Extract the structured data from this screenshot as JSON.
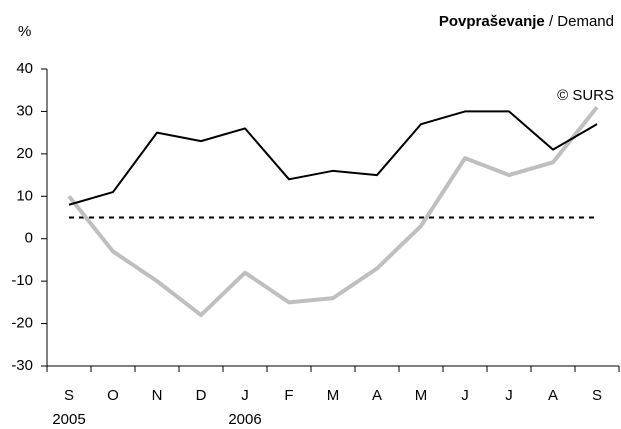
{
  "chart_data": {
    "type": "line",
    "title": {
      "bold": "Povpraševanje",
      "rest": "/ Demand"
    },
    "y_unit": "%",
    "annotation": "© SURS",
    "categories": [
      "S",
      "O",
      "N",
      "D",
      "J",
      "F",
      "M",
      "A",
      "M",
      "J",
      "J",
      "A",
      "S"
    ],
    "category_years": [
      "2005",
      null,
      null,
      null,
      "2006",
      null,
      null,
      null,
      null,
      null,
      null,
      null,
      null
    ],
    "series": [
      {
        "color": "#000000",
        "width": 2,
        "dashed": false,
        "values": [
          8,
          11,
          25,
          23,
          26,
          14,
          16,
          15,
          27,
          30,
          30,
          21,
          27
        ]
      },
      {
        "color": "#bfbfbf",
        "width": 4,
        "dashed": false,
        "values": [
          10,
          -3,
          -10,
          -18,
          -8,
          -15,
          -14,
          -7,
          3,
          19,
          15,
          18,
          31
        ]
      },
      {
        "color": "#000000",
        "width": 2,
        "dashed": true,
        "values": [
          5,
          5,
          5,
          5,
          5,
          5,
          5,
          5,
          5,
          5,
          5,
          5,
          5
        ]
      }
    ],
    "ylim": [
      -30,
      40
    ],
    "yticks": [
      -30,
      -20,
      -10,
      0,
      10,
      20,
      30,
      40
    ],
    "grid": false
  }
}
